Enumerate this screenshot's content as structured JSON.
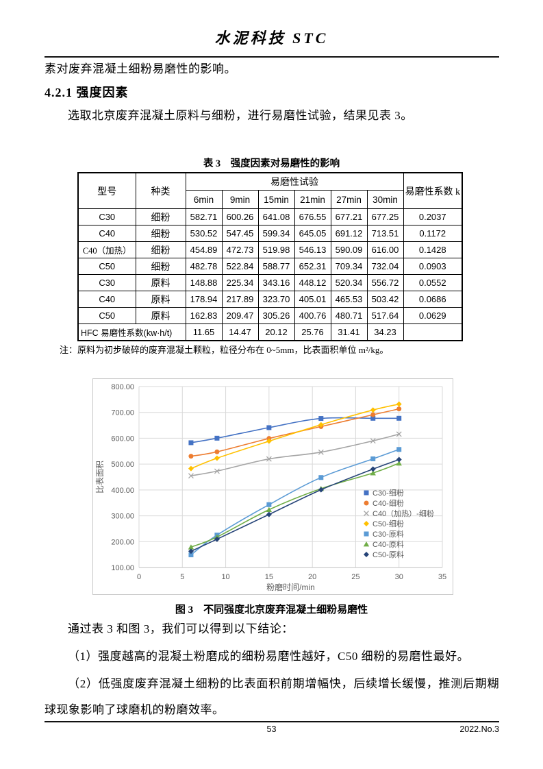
{
  "page": {
    "journal_title": "水泥科技 STC",
    "intro_line": "素对废弃混凝土细粉易磨性的影响。",
    "section_heading": "4.2.1 强度因素",
    "lead_paragraph": "选取北京废弃混凝土原料与细粉，进行易磨性试验，结果见表 3。",
    "footer": {
      "page_number": "53",
      "issue": "2022.No.3"
    }
  },
  "table3": {
    "title": "表 3　强度因素对易磨性的影响",
    "headers": {
      "model": "型号",
      "type": "种类",
      "group": "易磨性试验",
      "times": [
        "6min",
        "9min",
        "15min",
        "21min",
        "27min",
        "30min"
      ],
      "k": "易磨性系数 k"
    },
    "rows": [
      {
        "model": "C30",
        "type": "细粉",
        "values": [
          "582.71",
          "600.26",
          "641.08",
          "676.55",
          "677.21",
          "677.25"
        ],
        "k": "0.2037"
      },
      {
        "model": "C40",
        "type": "细粉",
        "values": [
          "530.52",
          "547.45",
          "599.34",
          "645.05",
          "691.12",
          "713.51"
        ],
        "k": "0.1172"
      },
      {
        "model": "C40（加热）",
        "type": "细粉",
        "values": [
          "454.89",
          "472.73",
          "519.98",
          "546.13",
          "590.09",
          "616.00"
        ],
        "k": "0.1428"
      },
      {
        "model": "C50",
        "type": "细粉",
        "values": [
          "482.78",
          "522.84",
          "588.77",
          "652.31",
          "709.34",
          "732.04"
        ],
        "k": "0.0903"
      },
      {
        "model": "C30",
        "type": "原料",
        "values": [
          "148.88",
          "225.34",
          "343.16",
          "448.12",
          "520.34",
          "556.72"
        ],
        "k": "0.0552"
      },
      {
        "model": "C40",
        "type": "原料",
        "values": [
          "178.94",
          "217.89",
          "323.70",
          "405.01",
          "465.53",
          "503.42"
        ],
        "k": "0.0686"
      },
      {
        "model": "C50",
        "type": "原料",
        "values": [
          "162.83",
          "209.47",
          "305.26",
          "400.76",
          "480.71",
          "517.64"
        ],
        "k": "0.0629"
      }
    ],
    "hfc_row": {
      "label": "HFC 易磨性系数(kw·h/t)",
      "values": [
        "11.65",
        "14.47",
        "20.12",
        "25.76",
        "31.41",
        "34.23"
      ],
      "k": ""
    },
    "note": "注：原料为初步破碎的废弃混凝土颗粒，粒径分布在 0~5mm，比表面积单位 m²/kg。"
  },
  "chart_data": {
    "type": "line",
    "xlabel": "粉磨时间/min",
    "ylabel": "比表面积",
    "x": [
      6,
      9,
      15,
      21,
      27,
      30
    ],
    "xlim": [
      0,
      35
    ],
    "xticks": [
      0,
      5,
      10,
      15,
      20,
      25,
      30,
      35
    ],
    "ylim": [
      100,
      800
    ],
    "yticks": [
      100,
      200,
      300,
      400,
      500,
      600,
      700,
      800
    ],
    "grid": true,
    "legend_position": "inside-right",
    "series": [
      {
        "name": "C30-细粉",
        "marker": "square",
        "color": "#4472C4",
        "values": [
          582.71,
          600.26,
          641.08,
          676.55,
          677.21,
          677.25
        ]
      },
      {
        "name": "C40-细粉",
        "marker": "circle",
        "color": "#ED7D31",
        "values": [
          530.52,
          547.45,
          599.34,
          645.05,
          691.12,
          713.51
        ]
      },
      {
        "name": "C40（加热）-细粉",
        "marker": "x",
        "color": "#A5A5A5",
        "values": [
          454.89,
          472.73,
          519.98,
          546.13,
          590.09,
          616.0
        ]
      },
      {
        "name": "C50-细粉",
        "marker": "diamond",
        "color": "#FFC000",
        "values": [
          482.78,
          522.84,
          588.77,
          652.31,
          709.34,
          732.04
        ]
      },
      {
        "name": "C30-原料",
        "marker": "square",
        "color": "#5B9BD5",
        "values": [
          148.88,
          225.34,
          343.16,
          448.12,
          520.34,
          556.72
        ]
      },
      {
        "name": "C40-原料",
        "marker": "triangle",
        "color": "#70AD47",
        "values": [
          178.94,
          217.89,
          323.7,
          405.01,
          465.53,
          503.42
        ]
      },
      {
        "name": "C50-原料",
        "marker": "diamond",
        "color": "#264478",
        "values": [
          162.83,
          209.47,
          305.26,
          400.76,
          480.71,
          517.64
        ]
      }
    ]
  },
  "figure3": {
    "caption": "图 3　不同强度北京废弃混凝土细粉易磨性"
  },
  "conclusions": {
    "intro": "通过表 3 和图 3，我们可以得到以下结论：",
    "item1": "（1）强度越高的混凝土粉磨成的细粉易磨性越好，C50 细粉的易磨性最好。",
    "item2": "（2）低强度废弃混凝土细粉的比表面积前期增幅快，后续增长缓慢，推测后期糊球现象影响了球磨机的粉磨效率。"
  }
}
